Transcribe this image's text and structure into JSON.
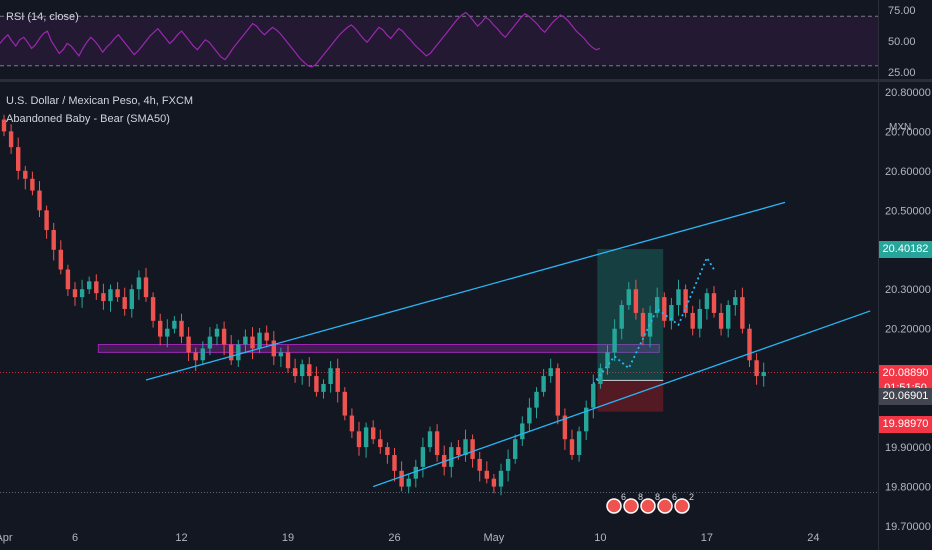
{
  "header": {
    "symbol": "U.S. Dollar / Mexican Peso, 4h, FXCM",
    "indicator": "Abandoned Baby - Bear (SMA50)",
    "rsi_label": "RSI (14, close)",
    "unit": "MXN"
  },
  "chart_data": [
    {
      "type": "line",
      "name": "rsi",
      "ylim": [
        25,
        75
      ],
      "yticks": [
        75,
        50,
        25
      ],
      "ytick_labels": [
        "75.00",
        "50.00",
        "25.00"
      ],
      "bands": [
        70,
        30
      ],
      "color": "#9c27b0",
      "values": [
        48,
        52,
        55,
        50,
        46,
        51,
        53,
        49,
        44,
        47,
        52,
        56,
        58,
        50,
        45,
        40,
        43,
        48,
        46,
        42,
        38,
        44,
        49,
        53,
        50,
        46,
        41,
        45,
        48,
        52,
        55,
        51,
        47,
        43,
        39,
        42,
        46,
        50,
        54,
        57,
        60,
        56,
        52,
        48,
        51,
        55,
        58,
        54,
        50,
        46,
        43,
        47,
        51,
        49,
        45,
        41,
        37,
        35,
        39,
        44,
        48,
        52,
        56,
        60,
        64,
        62,
        58,
        55,
        58,
        61,
        59,
        56,
        52,
        48,
        44,
        40,
        36,
        33,
        30,
        29,
        31,
        35,
        39,
        43,
        47,
        51,
        55,
        58,
        61,
        63,
        60,
        56,
        52,
        49,
        53,
        57,
        61,
        59,
        55,
        52,
        56,
        60,
        58,
        54,
        51,
        47,
        44,
        41,
        38,
        40,
        44,
        48,
        52,
        56,
        60,
        64,
        68,
        71,
        73,
        70,
        66,
        62,
        65,
        69,
        67,
        63,
        60,
        56,
        53,
        57,
        61,
        65,
        69,
        72,
        70,
        67,
        64,
        60,
        57,
        61,
        65,
        68,
        71,
        69,
        66,
        62,
        58,
        55,
        52,
        48,
        45,
        43,
        44
      ]
    },
    {
      "type": "candlestick",
      "name": "price",
      "ylim": [
        19.69,
        20.82
      ],
      "yticks": [
        19.7,
        19.8,
        19.9,
        20.0,
        20.1,
        20.2,
        20.3,
        20.4,
        20.5,
        20.6,
        20.7,
        20.8
      ],
      "ytick_labels": [
        "19.70000",
        "19.80000",
        "19.90000",
        "",
        "",
        "20.20000",
        "20.30000",
        "",
        "20.50000",
        "20.60000",
        "20.70000",
        "20.80000"
      ],
      "x_labels": [
        {
          "label": "Apr",
          "bar": 0
        },
        {
          "label": "6",
          "bar": 10
        },
        {
          "label": "12",
          "bar": 25
        },
        {
          "label": "19",
          "bar": 40
        },
        {
          "label": "26",
          "bar": 55
        },
        {
          "label": "May",
          "bar": 69
        },
        {
          "label": "10",
          "bar": 84
        },
        {
          "label": "17",
          "bar": 99
        },
        {
          "label": "24",
          "bar": 114
        }
      ],
      "up_color": "#26a69a",
      "down_color": "#ef5350",
      "closes": [
        20.7,
        20.66,
        20.6,
        20.58,
        20.55,
        20.5,
        20.45,
        20.4,
        20.35,
        20.3,
        20.28,
        20.3,
        20.32,
        20.29,
        20.27,
        20.3,
        20.28,
        20.25,
        20.3,
        20.33,
        20.28,
        20.22,
        20.18,
        20.2,
        20.22,
        20.18,
        20.14,
        20.12,
        20.15,
        20.18,
        20.2,
        20.16,
        20.12,
        20.16,
        20.18,
        20.15,
        20.19,
        20.17,
        20.13,
        20.14,
        20.1,
        20.08,
        20.11,
        20.08,
        20.04,
        20.06,
        20.1,
        20.04,
        19.98,
        19.94,
        19.9,
        19.95,
        19.92,
        19.9,
        19.88,
        19.84,
        19.8,
        19.82,
        19.85,
        19.9,
        19.94,
        19.88,
        19.85,
        19.9,
        19.88,
        19.92,
        19.87,
        19.84,
        19.82,
        19.8,
        19.84,
        19.87,
        19.92,
        19.96,
        20.0,
        20.04,
        20.08,
        20.1,
        19.98,
        19.92,
        19.88,
        19.94,
        20.0,
        20.06,
        20.1,
        20.14,
        20.2,
        20.26,
        20.3,
        20.24,
        20.18,
        20.24,
        20.28,
        20.22,
        20.26,
        20.3,
        20.24,
        20.2,
        20.25,
        20.29,
        20.24,
        20.2,
        20.26,
        20.28,
        20.2,
        20.12,
        20.08,
        20.09
      ],
      "current_price": 20.0889,
      "current_label": "20.08890",
      "countdown": "01:51:50"
    }
  ],
  "annotations": {
    "target_label": "20.40182",
    "entry_label": "20.06901",
    "stop_label": "19.98970",
    "target_price": 20.40182,
    "entry_price": 20.06901,
    "stop_price": 19.9897,
    "zone_top": 20.16,
    "zone_bottom": 20.14,
    "support_level": 19.785,
    "channel_upper": [
      [
        20,
        20.07
      ],
      [
        110,
        20.52
      ]
    ],
    "channel_lower": [
      [
        52,
        19.8
      ],
      [
        122,
        20.245
      ]
    ],
    "projection": [
      [
        83,
        20.06
      ],
      [
        86,
        20.13
      ],
      [
        88,
        20.1
      ],
      [
        92,
        20.25
      ],
      [
        95,
        20.21
      ],
      [
        99,
        20.38
      ],
      [
        100,
        20.35
      ]
    ],
    "position_start_bar": 83,
    "position_end_bar": 92,
    "zone_start_bar": 13,
    "zone_end_bar": 92,
    "event_flags": [
      "6",
      "8",
      "8",
      "6",
      "2"
    ],
    "colors": {
      "channel": "#29b6f6",
      "zone": "#9c27b0",
      "profit": "#1b8a7a",
      "loss": "#8b1d24",
      "current": "#f23645",
      "entry_tag": "#434651",
      "target_tag": "#26a69a"
    }
  }
}
